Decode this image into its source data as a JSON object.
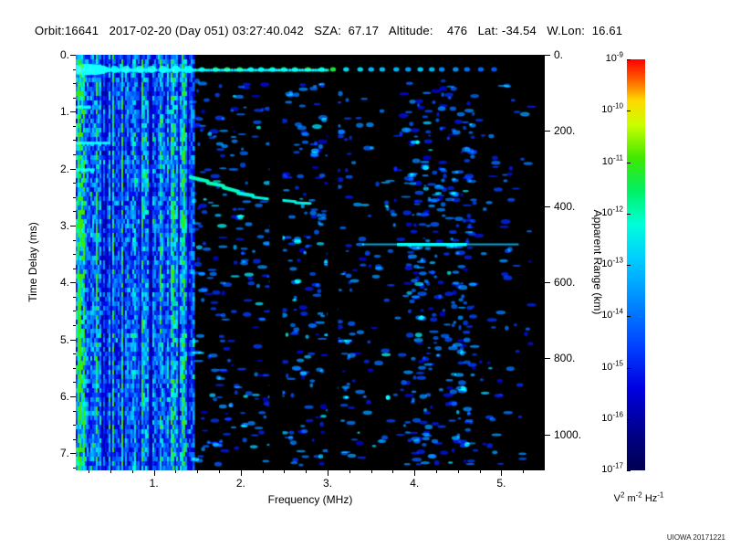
{
  "header": {
    "line": "Orbit:16641   2017-02-20 (Day 051) 03:27:40.042   SZA:  67.17   Altitude:    476   Lat: -34.54   W.Lon:  16.61"
  },
  "credit": "UIOWA 20171221",
  "chart_data": {
    "type": "heatmap",
    "description": "Radar sounder ionogram: received spectral density versus frequency and time delay",
    "x_axis": {
      "label": "Frequency (MHz)",
      "range": [
        0.1,
        5.5
      ],
      "ticks": [
        1,
        2,
        3,
        4,
        5
      ],
      "tick_labels": [
        "1.",
        "2.",
        "3.",
        "4.",
        "5."
      ]
    },
    "y_axis": {
      "label": "Time Delay (ms)",
      "range": [
        0,
        7.3
      ],
      "ticks": [
        0,
        1,
        2,
        3,
        4,
        5,
        6,
        7
      ],
      "tick_labels": [
        "0.",
        "1.",
        "2.",
        "3.",
        "4.",
        "5.",
        "6.",
        "7."
      ]
    },
    "y2_axis": {
      "label": "Apparent Range (km)",
      "ticks_km": [
        0,
        200,
        400,
        600,
        800,
        1000
      ],
      "tick_labels": [
        "0.",
        "200.",
        "400.",
        "600.",
        "800.",
        "1000."
      ],
      "km_per_ms": 150
    },
    "colorbar": {
      "base": "10",
      "exponents": [
        "-9",
        "-10",
        "-11",
        "-12",
        "-13",
        "-14",
        "-15",
        "-16",
        "-17"
      ],
      "unit_parts": [
        {
          "t": "V",
          "s": "2"
        },
        {
          "t": " m",
          "s": "-2"
        },
        {
          "t": " Hz",
          "s": "-1"
        }
      ]
    },
    "colormap": [
      [
        0,
        "#000050"
      ],
      [
        0.1,
        "#000090"
      ],
      [
        0.2,
        "#0000e0"
      ],
      [
        0.3,
        "#0040ff"
      ],
      [
        0.42,
        "#0090ff"
      ],
      [
        0.52,
        "#00d0ff"
      ],
      [
        0.6,
        "#00ffd8"
      ],
      [
        0.68,
        "#00f064"
      ],
      [
        0.76,
        "#40e800"
      ],
      [
        0.84,
        "#c8ff00"
      ],
      [
        0.9,
        "#ffd800"
      ],
      [
        0.95,
        "#ff6000"
      ],
      [
        1,
        "#ff0000"
      ]
    ],
    "seed": 42,
    "features": {
      "noise_band": {
        "f_range": [
          0.1,
          1.45
        ],
        "bright_columns": [
          0.13,
          0.19,
          0.33,
          0.52,
          0.62,
          0.85,
          1.07,
          1.2,
          1.33
        ]
      },
      "surface_echo": {
        "delay_ms": 0.27,
        "f_end_line": 3.0,
        "f_end_blobs": 5.0,
        "blob_spacing_mhz": 0.135
      },
      "ionosphere_trace": {
        "intensity": 0.58,
        "segments": [
          [
            1.42,
            2.15,
            1.62,
            2.22
          ],
          [
            1.62,
            2.25,
            1.8,
            2.3
          ],
          [
            1.8,
            2.33,
            1.97,
            2.4
          ],
          [
            1.97,
            2.43,
            2.14,
            2.47
          ],
          [
            2.14,
            2.5,
            2.31,
            2.53
          ],
          [
            2.45,
            2.55,
            2.63,
            2.58
          ],
          [
            2.63,
            2.6,
            2.8,
            2.61
          ]
        ]
      },
      "horizontal_streak": {
        "delay_ms": 3.33,
        "f_range": [
          3.4,
          5.2
        ],
        "bright_range": [
          3.8,
          4.6
        ],
        "intensity": 0.5
      },
      "left_streaks": [
        [
          0.1,
          0.5,
          1.55
        ],
        [
          0.1,
          0.32,
          2.02
        ],
        [
          0.1,
          0.28,
          0.92
        ]
      ],
      "data_gaps": [
        [
          2.33,
          2.48
        ],
        [
          3.0,
          3.12
        ]
      ],
      "speckle": {
        "count": 1000,
        "dense_f_range": [
          3.9,
          4.7
        ]
      }
    }
  }
}
